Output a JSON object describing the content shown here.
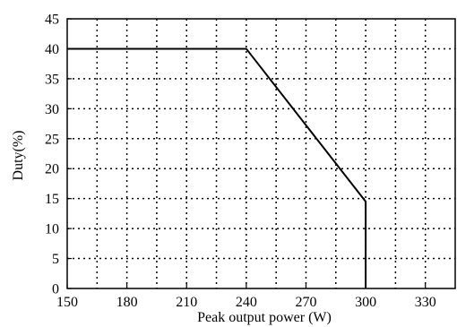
{
  "chart_data": {
    "type": "line",
    "xlabel": "Peak output power (W)",
    "ylabel": "Duty(%)",
    "xlim": [
      150,
      345
    ],
    "ylim": [
      0,
      45
    ],
    "x_ticks": [
      150,
      180,
      210,
      240,
      270,
      300,
      330
    ],
    "y_ticks": [
      0,
      5,
      10,
      15,
      20,
      25,
      30,
      35,
      40,
      45
    ],
    "x_minor_ticks": [
      165,
      195,
      225,
      255,
      285,
      315,
      345
    ],
    "grid": true,
    "grid_style": "dotted",
    "series": [
      {
        "x": [
          150,
          240,
          300,
          300
        ],
        "y": [
          40,
          40,
          14.5,
          0
        ],
        "color": "#000000"
      }
    ]
  }
}
